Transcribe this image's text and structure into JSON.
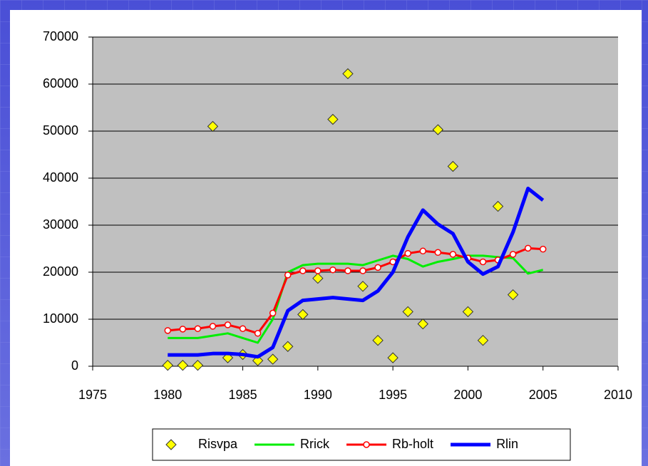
{
  "chart_data": {
    "type": "line",
    "x": [
      1980,
      1981,
      1982,
      1983,
      1984,
      1985,
      1986,
      1987,
      1988,
      1989,
      1990,
      1991,
      1992,
      1993,
      1994,
      1995,
      1996,
      1997,
      1998,
      1999,
      2000,
      2001,
      2002,
      2003,
      2004,
      2005
    ],
    "series": [
      {
        "name": "Risvpa",
        "color": "#ffff00",
        "marker": "diamond",
        "line": false,
        "line_width": 0,
        "values": [
          200,
          200,
          200,
          51000,
          1800,
          2500,
          1200,
          1500,
          4200,
          11000,
          18700,
          52500,
          62200,
          17000,
          5500,
          1800,
          11600,
          9000,
          50300,
          42500,
          11600,
          5500,
          34000,
          15200,
          null,
          null
        ]
      },
      {
        "name": "Rrick",
        "color": "#00ee00",
        "marker": "none",
        "line": true,
        "line_width": 3,
        "values": [
          6000,
          6000,
          6000,
          6500,
          7000,
          6000,
          5000,
          10000,
          20000,
          21500,
          21800,
          21800,
          21800,
          21500,
          22500,
          23500,
          22800,
          21200,
          22200,
          22800,
          23500,
          23500,
          23200,
          23000,
          19700,
          20500
        ]
      },
      {
        "name": "Rb-holt",
        "color": "#ff0000",
        "marker": "circle",
        "line": true,
        "line_width": 3,
        "values": [
          7600,
          7900,
          8000,
          8500,
          8800,
          8000,
          7000,
          11300,
          19400,
          20300,
          20300,
          20500,
          20300,
          20300,
          21000,
          22200,
          24000,
          24500,
          24200,
          23800,
          23000,
          22200,
          22600,
          23800,
          25100,
          24900
        ]
      },
      {
        "name": "Rlin",
        "color": "#0000ff",
        "marker": "none",
        "line": true,
        "line_width": 5,
        "values": [
          2400,
          2400,
          2400,
          2700,
          2700,
          2500,
          2000,
          4000,
          11800,
          14000,
          14300,
          14600,
          14300,
          14000,
          16000,
          20000,
          27500,
          33200,
          30200,
          28200,
          22200,
          19600,
          21200,
          28500,
          37800,
          35300
        ]
      }
    ],
    "xlim": [
      1975,
      2010
    ],
    "xticks": [
      1975,
      1980,
      1985,
      1990,
      1995,
      2000,
      2005,
      2010
    ],
    "ylim": [
      0,
      70000
    ],
    "yticks": [
      0,
      10000,
      20000,
      30000,
      40000,
      50000,
      60000,
      70000
    ],
    "grid": true,
    "legend": "bottom"
  }
}
